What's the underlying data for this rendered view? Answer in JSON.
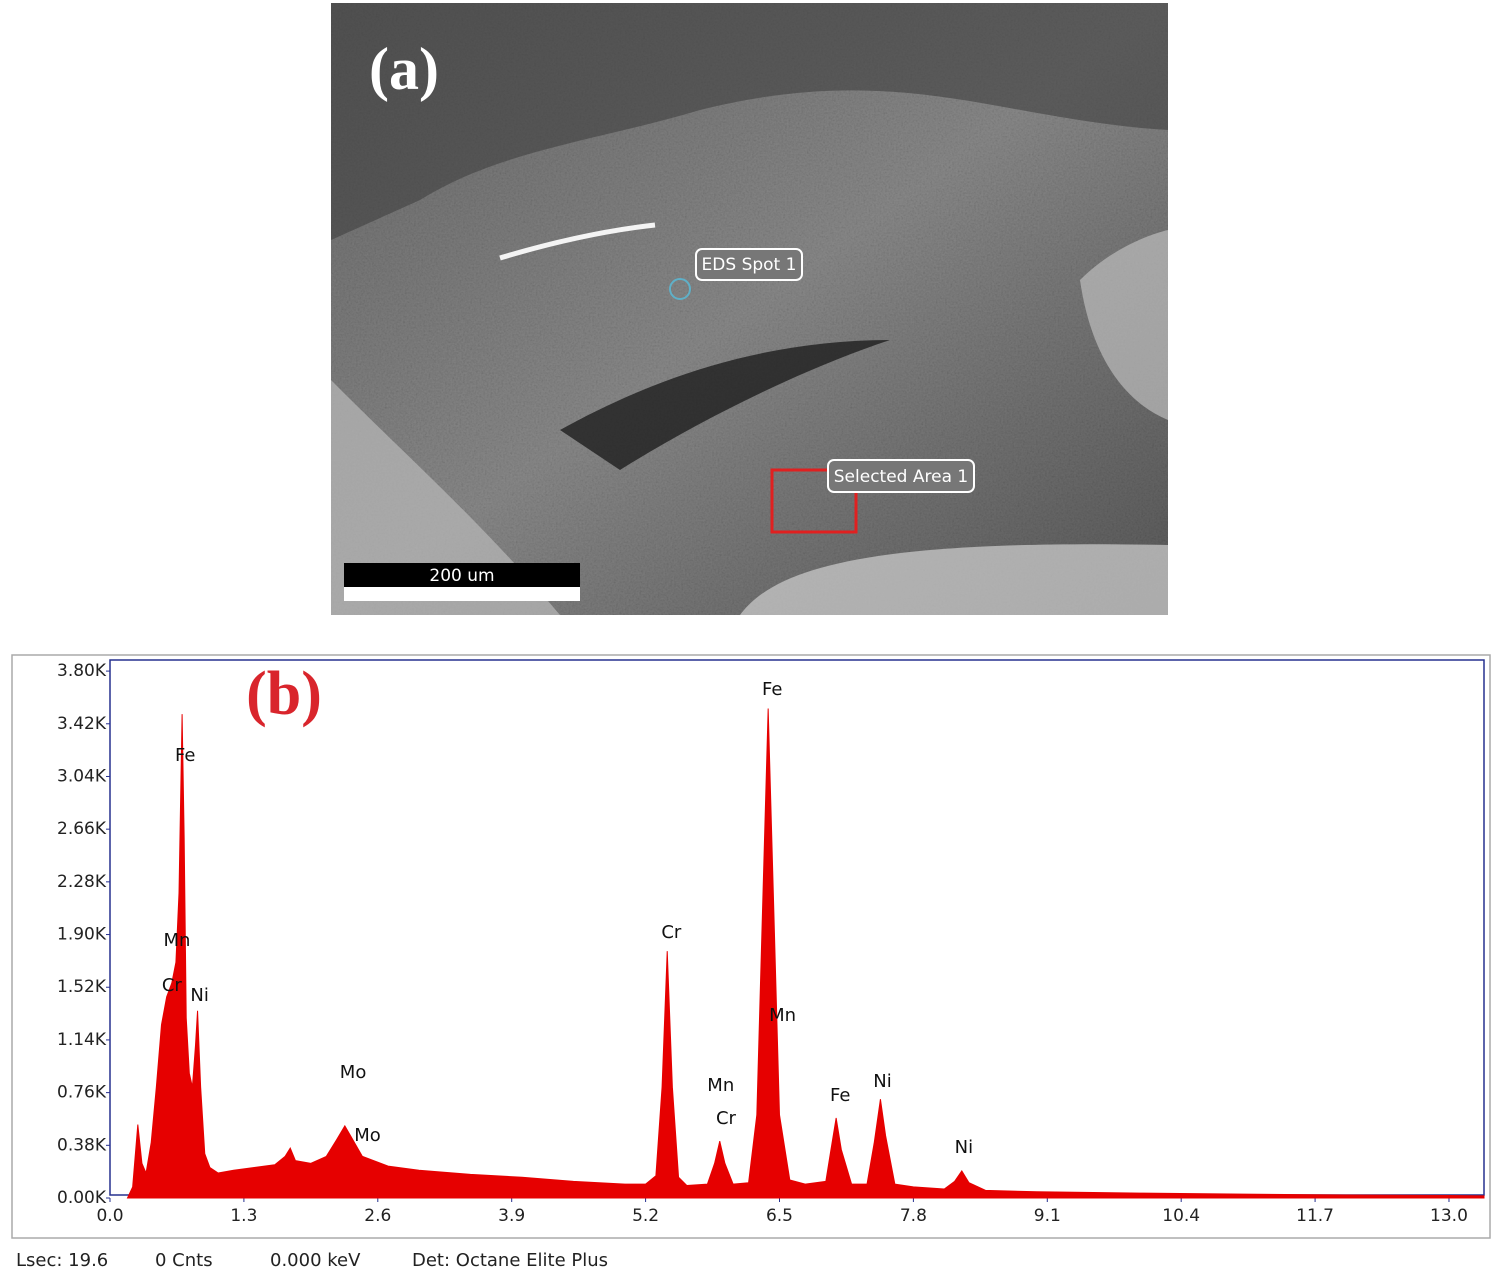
{
  "image": {
    "panel_label": "(a)",
    "spot_label": "EDS Spot 1",
    "area_label": "Selected Area 1",
    "scale_bar": "200 um"
  },
  "chart_data": {
    "type": "area",
    "panel_label": "(b)",
    "color": "#e60000",
    "x": [
      0.17,
      0.22,
      0.27,
      0.31,
      0.35,
      0.4,
      0.45,
      0.5,
      0.55,
      0.6,
      0.64,
      0.67,
      0.7,
      0.72,
      0.74,
      0.77,
      0.8,
      0.83,
      0.85,
      0.88,
      0.92,
      0.97,
      1.05,
      1.2,
      1.4,
      1.6,
      1.7,
      1.75,
      1.8,
      1.95,
      2.1,
      2.2,
      2.28,
      2.35,
      2.45,
      2.7,
      3.0,
      3.5,
      4.0,
      4.5,
      5.0,
      5.2,
      5.3,
      5.36,
      5.41,
      5.46,
      5.52,
      5.6,
      5.8,
      5.87,
      5.92,
      5.97,
      6.05,
      6.2,
      6.28,
      6.34,
      6.39,
      6.44,
      6.5,
      6.6,
      6.75,
      6.95,
      7.0,
      7.05,
      7.1,
      7.2,
      7.35,
      7.42,
      7.48,
      7.53,
      7.62,
      7.8,
      8.1,
      8.2,
      8.27,
      8.34,
      8.5,
      9.0,
      10.0,
      11.0,
      12.0,
      13.0,
      13.34
    ],
    "values": [
      0,
      80,
      530,
      250,
      180,
      400,
      800,
      1250,
      1450,
      1550,
      1700,
      2200,
      3490,
      2600,
      1300,
      900,
      800,
      1100,
      1350,
      800,
      320,
      220,
      180,
      200,
      220,
      240,
      300,
      360,
      270,
      250,
      300,
      420,
      520,
      430,
      300,
      230,
      200,
      170,
      150,
      120,
      100,
      100,
      160,
      800,
      1780,
      800,
      150,
      90,
      100,
      250,
      410,
      250,
      100,
      110,
      600,
      2200,
      3530,
      2200,
      600,
      130,
      100,
      120,
      350,
      577,
      350,
      100,
      100,
      400,
      713,
      450,
      100,
      80,
      65,
      120,
      195,
      110,
      55,
      45,
      35,
      28,
      22,
      18,
      15
    ],
    "xlim": [
      0,
      13.34
    ],
    "xticks": [
      {
        "value": 0,
        "label": "0.0"
      },
      1.3,
      2.6,
      3.9,
      5.2,
      6.5,
      7.8,
      9.1,
      10.4,
      11.7,
      {
        "value": 13,
        "label": "13.0"
      }
    ],
    "ylim": [
      0,
      3880
    ],
    "yticks": [
      {
        "value": 0,
        "label": "0.00K"
      },
      {
        "value": 380,
        "label": "0.38K"
      },
      {
        "value": 760,
        "label": "0.76K"
      },
      {
        "value": 1140,
        "label": "1.14K"
      },
      {
        "value": 1520,
        "label": "1.52K"
      },
      {
        "value": 1900,
        "label": "1.90K"
      },
      {
        "value": 2280,
        "label": "2.28K"
      },
      {
        "value": 2660,
        "label": "2.66K"
      },
      {
        "value": 3040,
        "label": "3.04K"
      },
      {
        "value": 3420,
        "label": "3.42K"
      },
      {
        "value": 3800,
        "label": "3.80K"
      }
    ],
    "annotations": [
      {
        "text": "Fe",
        "x": 0.73,
        "y": 3187
      },
      {
        "text": "Mn",
        "x": 0.65,
        "y": 1853
      },
      {
        "text": "Cr",
        "x": 0.6,
        "y": 1529
      },
      {
        "text": "Ni",
        "x": 0.87,
        "y": 1456
      },
      {
        "text": "Mo",
        "x": 2.36,
        "y": 901
      },
      {
        "text": "Mo",
        "x": 2.5,
        "y": 447
      },
      {
        "text": "Cr",
        "x": 5.45,
        "y": 1911
      },
      {
        "text": "Mn",
        "x": 5.93,
        "y": 808
      },
      {
        "text": "Cr",
        "x": 5.98,
        "y": 570
      },
      {
        "text": "Fe",
        "x": 6.43,
        "y": 3663
      },
      {
        "text": "Mn",
        "x": 6.53,
        "y": 1312
      },
      {
        "text": "Fe",
        "x": 7.09,
        "y": 735
      },
      {
        "text": "Ni",
        "x": 7.5,
        "y": 836
      },
      {
        "text": "Ni",
        "x": 8.29,
        "y": 360
      }
    ],
    "footer": [
      "Lsec: 19.6",
      "0 Cnts",
      "0.000 keV",
      "Det: Octane Elite Plus"
    ]
  }
}
